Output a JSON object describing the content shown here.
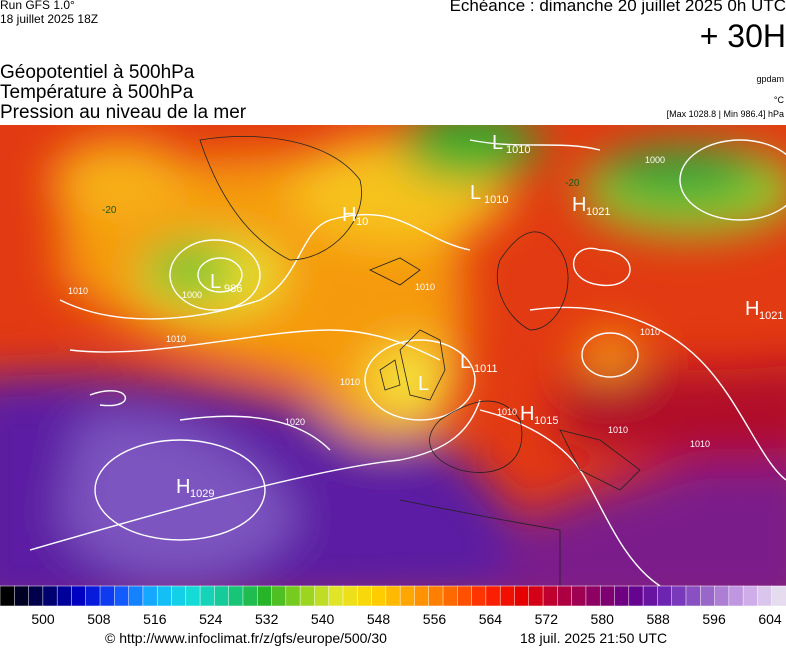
{
  "header": {
    "run": "Run GFS 1.0°",
    "run_date": "18 juillet 2025 18Z",
    "valid": "Echéance : dimanche 20 juillet 2025 0h UTC",
    "lead": "+ 30H",
    "fields": [
      "Géopotentiel à 500hPa",
      "Température à 500hPa",
      "Pression au niveau de la mer"
    ],
    "units": [
      "gpdam",
      "°C",
      "[Max 1028.8 | Min 986.4] hPa"
    ]
  },
  "map": {
    "centers": [
      {
        "letter": "L",
        "value": 1010
      },
      {
        "letter": "L",
        "value": 1010
      },
      {
        "letter": "H",
        "value": 1021
      },
      {
        "letter": "H",
        "value": 10
      },
      {
        "letter": "L",
        "value": 986
      },
      {
        "letter": "H",
        "value": 1021
      },
      {
        "letter": "L",
        "value": 1011
      },
      {
        "letter": "L",
        "value": null
      },
      {
        "letter": "H",
        "value": 1015
      },
      {
        "letter": "H",
        "value": 1029
      }
    ],
    "isobar_labels": [
      1010,
      1000,
      1010,
      1010,
      1020,
      1010,
      1010,
      1010,
      1010,
      1010,
      1000
    ],
    "temperature_labels": [
      -20,
      -20
    ]
  },
  "colorbar": {
    "labels": [
      500,
      508,
      516,
      524,
      532,
      540,
      548,
      556,
      564,
      572,
      580,
      588,
      596,
      604
    ]
  },
  "footer": {
    "source": "© http://www.infoclimat.fr/z/gfs/europe/500/30",
    "timestamp": "18 juil. 2025 21:50 UTC"
  }
}
